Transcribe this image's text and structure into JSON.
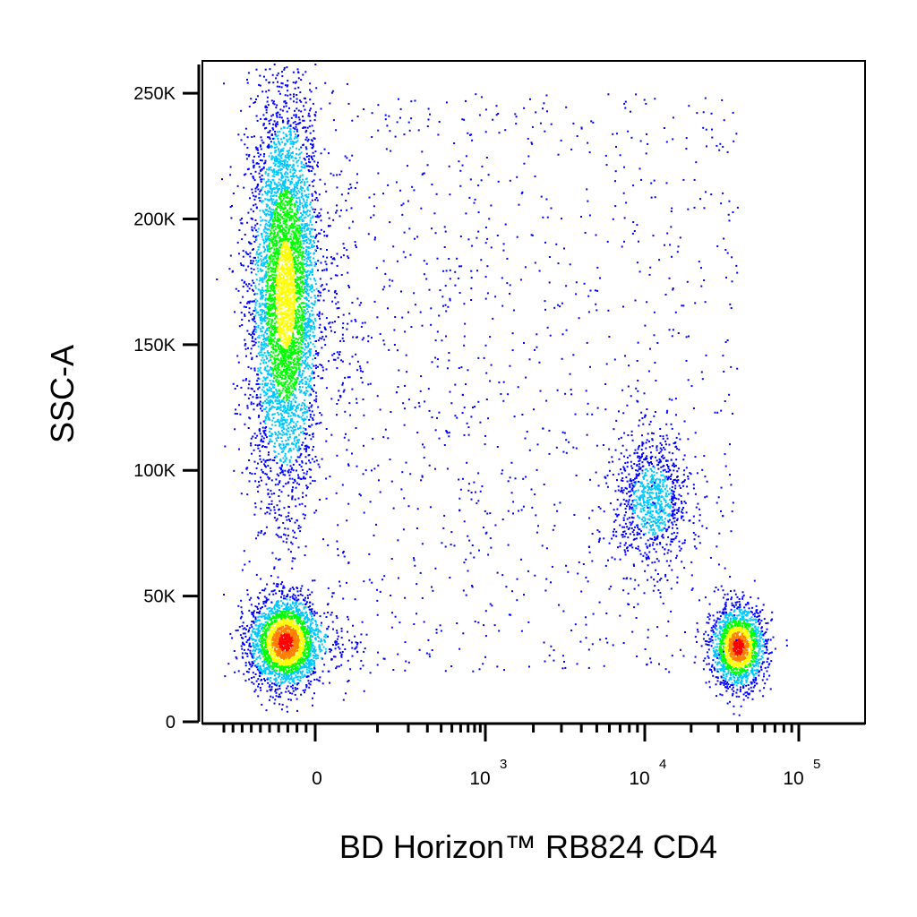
{
  "chart_data": {
    "type": "scatter",
    "title": "",
    "xlabel": "BD Horizon™ RB824 CD4",
    "ylabel": "SSC-A",
    "x_scale": "biexponential",
    "y_scale": "linear",
    "ylim": [
      0,
      262144
    ],
    "grid": false,
    "legend": "none",
    "y_ticks": [
      {
        "value": 0,
        "label": "0"
      },
      {
        "value": 50000,
        "label": "50K"
      },
      {
        "value": 100000,
        "label": "100K"
      },
      {
        "value": 150000,
        "label": "150K"
      },
      {
        "value": 200000,
        "label": "200K"
      },
      {
        "value": 250000,
        "label": "250K"
      }
    ],
    "x_ticks": [
      {
        "value": 0,
        "label": "0",
        "exp": ""
      },
      {
        "value": 1000,
        "label": "10",
        "exp": "3"
      },
      {
        "value": 10000,
        "label": "10",
        "exp": "4"
      },
      {
        "value": 100000,
        "label": "10",
        "exp": "5"
      }
    ],
    "color_scale": [
      "#0000ff",
      "#00c8ff",
      "#00ff00",
      "#ffff00",
      "#ff8000",
      "#ff0000"
    ],
    "populations": [
      {
        "x_center": -100,
        "y_center": 170000,
        "y_spread": 40000,
        "x_spread": 60,
        "events": 5200,
        "peak_density": "yellow"
      },
      {
        "x_center": -100,
        "y_center": 32000,
        "y_spread": 9000,
        "x_spread": 60,
        "events": 2600,
        "peak_density": "red"
      },
      {
        "x_center": 11000,
        "y_center": 88000,
        "y_spread": 13000,
        "x_spread": 3500,
        "events": 950,
        "peak_density": "cyan"
      },
      {
        "x_center": 40000,
        "y_center": 30000,
        "y_spread": 8000,
        "x_spread": 9000,
        "events": 1700,
        "peak_density": "red"
      },
      {
        "x_center": 500,
        "y_center": 110000,
        "y_spread": 70000,
        "x_spread": 2000,
        "events": 1100,
        "peak_density": "blue"
      }
    ]
  }
}
